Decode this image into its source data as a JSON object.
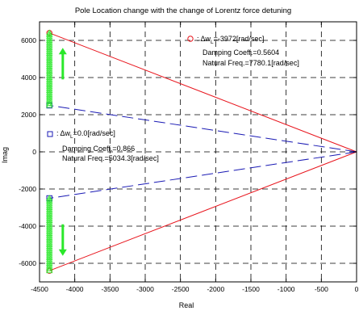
{
  "chart_data": {
    "type": "scatter",
    "title": "Pole Location change with the change of Lorentz force detuning",
    "xlabel": "Real",
    "ylabel": "Imag",
    "xlim": [
      -4500,
      0
    ],
    "ylim": [
      -7000,
      7000
    ],
    "xticks": [
      -4500,
      -4000,
      -3500,
      -3000,
      -2500,
      -2000,
      -1500,
      -1000,
      -500,
      0
    ],
    "yticks": [
      -6000,
      -4000,
      -2000,
      0,
      2000,
      4000,
      6000
    ],
    "grid": true,
    "colors": {
      "red": "#e8141c",
      "blue": "#1a1ab4",
      "green": "#2ae82a",
      "frame": "#000000"
    },
    "series": [
      {
        "marker": "circle",
        "color": "#e8141c",
        "points": [
          [
            -4360,
            6400
          ],
          [
            -4360,
            -6400
          ]
        ],
        "lines": [
          [
            [
              0,
              0
            ],
            [
              -4360,
              6400
            ]
          ],
          [
            [
              0,
              0
            ],
            [
              -4360,
              -6400
            ]
          ]
        ],
        "line_style": "solid"
      },
      {
        "marker": "square",
        "color": "#1a1ab4",
        "points": [
          [
            -4360,
            2500
          ],
          [
            -4360,
            -2500
          ]
        ],
        "lines": [
          [
            [
              0,
              0
            ],
            [
              -4360,
              2500
            ]
          ],
          [
            [
              0,
              0
            ],
            [
              -4360,
              -2500
            ]
          ]
        ],
        "line_style": "dashed"
      },
      {
        "marker": "triangle",
        "color": "#2ae82a",
        "x": -4360,
        "upper_range": [
          2500,
          6400
        ],
        "lower_range": [
          -6400,
          -2500
        ],
        "count_per_side": 40,
        "arrows": [
          {
            "x": -4170,
            "from": 3900,
            "to": 5600,
            "direction": "up"
          },
          {
            "x": -4170,
            "from": -3900,
            "to": -5600,
            "direction": "down"
          }
        ]
      }
    ],
    "annotations": [
      {
        "id": "red",
        "legend_text": ": Δw",
        "sub": "L",
        "value_text": "=-3972[rad/sec]",
        "lines": [
          "Damping Coeff.=0.5604",
          "Natural Freq.=7780.1[rad/sec]"
        ]
      },
      {
        "id": "blue",
        "legend_text": ": Δw",
        "sub": "L",
        "value_text": "=0.0[rad/sec]",
        "lines": [
          "Damping Coeff.=0.866",
          "Natural Freq.=5034.3[rad/sec]"
        ]
      }
    ]
  }
}
